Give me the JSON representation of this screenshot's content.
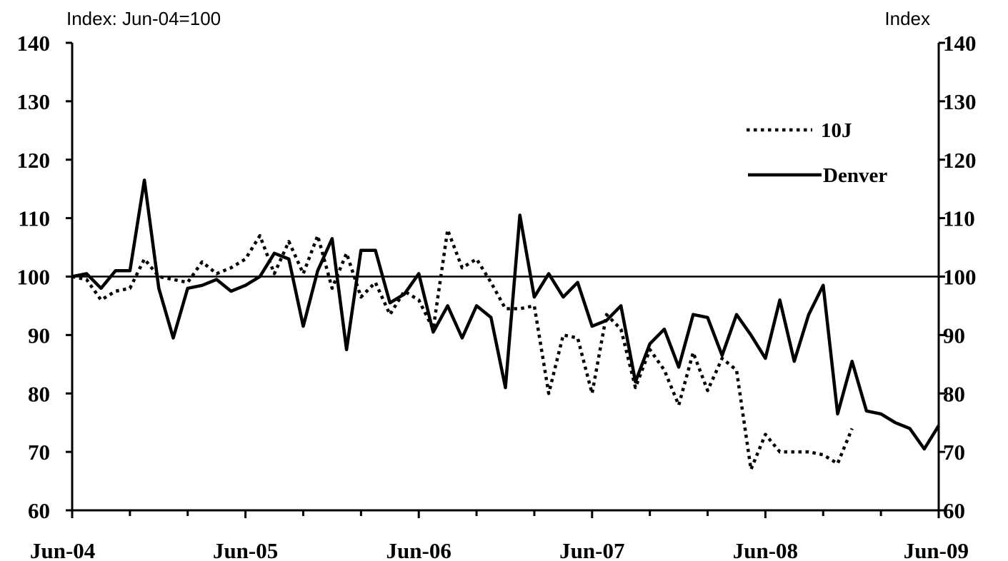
{
  "chart_data": {
    "type": "line",
    "title": "",
    "left_axis_label": "Index: Jun-04=100",
    "right_axis_label": "Index",
    "xlabel": "",
    "ylim": [
      60,
      140
    ],
    "y_ticks": [
      60,
      70,
      80,
      90,
      100,
      110,
      120,
      130,
      140
    ],
    "x_ticks": [
      "Jun-04",
      "Jun-05",
      "Jun-06",
      "Jun-07",
      "Jun-08",
      "Jun-09"
    ],
    "reference_line": 100,
    "legend_position": "top-right",
    "x_months": [
      0,
      1,
      2,
      3,
      4,
      5,
      6,
      7,
      8,
      9,
      10,
      11,
      12,
      13,
      14,
      15,
      16,
      17,
      18,
      19,
      20,
      21,
      22,
      23,
      24,
      25,
      26,
      27,
      28,
      29,
      30,
      31,
      32,
      33,
      34,
      35,
      36,
      37,
      38,
      39,
      40,
      41,
      42,
      43,
      44,
      45,
      46,
      47,
      48,
      49,
      50,
      51,
      52,
      53,
      54,
      55,
      56,
      57,
      58,
      59,
      60
    ],
    "series": [
      {
        "name": "10J",
        "style": "dotted",
        "values": [
          100,
          99.5,
          96,
          97.5,
          98,
          103,
          100,
          99.5,
          99,
          102.5,
          100.5,
          101.5,
          103,
          107,
          100.5,
          106,
          100.5,
          107,
          98,
          104,
          96.5,
          99,
          93.5,
          97.5,
          96,
          91,
          108,
          101.5,
          103,
          99,
          94.5,
          94.5,
          95,
          80,
          90,
          89.5,
          80,
          93.5,
          91,
          81,
          87.5,
          84,
          78,
          87,
          80.5,
          86,
          84,
          67,
          73,
          70,
          70,
          70,
          69.5,
          68,
          74
        ]
      },
      {
        "name": "Denver",
        "style": "solid",
        "values": [
          100,
          100.5,
          98,
          101,
          101,
          116.5,
          98,
          89.5,
          98,
          98.5,
          99.5,
          97.5,
          98.5,
          100,
          104,
          103,
          91.5,
          101,
          106.5,
          87.5,
          104.5,
          104.5,
          95.5,
          97,
          100.5,
          90.5,
          95,
          89.5,
          95,
          93,
          81,
          110.5,
          96.5,
          100.5,
          96.5,
          99,
          91.5,
          92.5,
          95,
          82,
          88.5,
          91,
          84.5,
          93.5,
          93,
          86.5,
          93.5,
          90,
          86,
          96,
          85.5,
          93.5,
          98.5,
          76.5,
          85.5,
          77,
          76.5,
          75,
          74,
          70.5,
          74.5
        ]
      }
    ]
  }
}
